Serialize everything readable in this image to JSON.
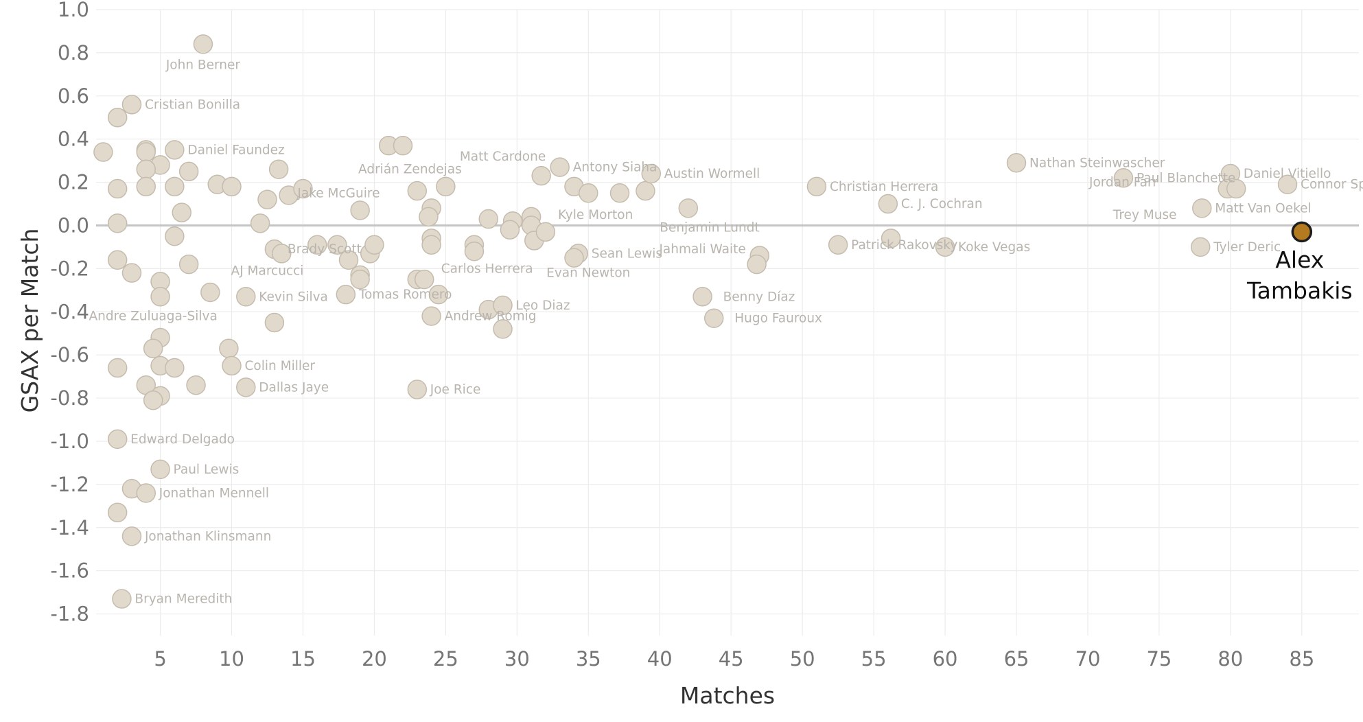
{
  "chart_data": {
    "type": "scatter",
    "xlabel": "Matches",
    "ylabel": "GSAX per Match",
    "xlim": [
      0.5,
      89
    ],
    "ylim": [
      -1.9,
      1.0
    ],
    "x_ticks": [
      5,
      10,
      15,
      20,
      25,
      30,
      35,
      40,
      45,
      50,
      55,
      60,
      65,
      70,
      75,
      80,
      85
    ],
    "y_ticks": [
      1.0,
      0.8,
      0.6,
      0.4,
      0.2,
      0.0,
      -0.2,
      -0.4,
      -0.6,
      -0.8,
      -1.0,
      -1.2,
      -1.4,
      -1.6,
      -1.8
    ],
    "y_tick_labels": [
      "1.0",
      "0.8",
      "0.6",
      "0.4",
      "0.2",
      "0.0",
      "-0.2",
      "-0.4",
      "-0.6",
      "-0.8",
      "-1.0",
      "-1.2",
      "-1.4",
      "-1.6",
      "-1.8"
    ],
    "grid": true,
    "colors": {
      "point": "#e1d9cc",
      "highlight": "#b47a1f",
      "label": "#b9b5ae"
    },
    "highlight": {
      "name": "Alex Tambakis",
      "label_lines": [
        "Alex",
        "Tambakis"
      ],
      "x": 85,
      "y": -0.03
    },
    "points": [
      {
        "x": 8,
        "y": 0.84,
        "label": "John Berner"
      },
      {
        "x": 3,
        "y": 0.56,
        "label": "Cristian Bonilla"
      },
      {
        "x": 2,
        "y": 0.5
      },
      {
        "x": 1,
        "y": 0.34
      },
      {
        "x": 4,
        "y": 0.35
      },
      {
        "x": 6,
        "y": 0.35,
        "label": "Daniel Faundez"
      },
      {
        "x": 4,
        "y": 0.34
      },
      {
        "x": 5,
        "y": 0.28
      },
      {
        "x": 4,
        "y": 0.26
      },
      {
        "x": 7,
        "y": 0.25
      },
      {
        "x": 9,
        "y": 0.19
      },
      {
        "x": 10,
        "y": 0.18
      },
      {
        "x": 2,
        "y": 0.17
      },
      {
        "x": 4,
        "y": 0.18
      },
      {
        "x": 6,
        "y": 0.18
      },
      {
        "x": 6.5,
        "y": 0.06
      },
      {
        "x": 2,
        "y": 0.01
      },
      {
        "x": 6,
        "y": -0.05
      },
      {
        "x": 2,
        "y": -0.16
      },
      {
        "x": 7,
        "y": -0.18
      },
      {
        "x": 3,
        "y": -0.22
      },
      {
        "x": 5,
        "y": -0.26
      },
      {
        "x": 5,
        "y": -0.33
      },
      {
        "x": 8.5,
        "y": -0.31
      },
      {
        "x": 5,
        "y": -0.52
      },
      {
        "x": 4.5,
        "y": -0.57
      },
      {
        "x": 9.8,
        "y": -0.57
      },
      {
        "x": 10,
        "y": -0.65,
        "label": "Colin Miller"
      },
      {
        "x": 5,
        "y": -0.65
      },
      {
        "x": 6,
        "y": -0.66
      },
      {
        "x": 2,
        "y": -0.66
      },
      {
        "x": 4,
        "y": -0.74
      },
      {
        "x": 7.5,
        "y": -0.74
      },
      {
        "x": 11,
        "y": -0.75,
        "label": "Dallas Jaye"
      },
      {
        "x": 5,
        "y": -0.79
      },
      {
        "x": 4.5,
        "y": -0.81
      },
      {
        "x": 2,
        "y": -0.99,
        "label": "Edward Delgado"
      },
      {
        "x": 5,
        "y": -1.13,
        "label": "Paul Lewis"
      },
      {
        "x": 3,
        "y": -1.22
      },
      {
        "x": 4,
        "y": -1.24,
        "label": "Jonathan Mennell"
      },
      {
        "x": 2,
        "y": -1.33
      },
      {
        "x": 3,
        "y": -1.44,
        "label": "Jonathan Klinsmann"
      },
      {
        "x": 2.3,
        "y": -1.73,
        "label": "Bryan Meredith"
      },
      {
        "x": 12,
        "y": 0.01
      },
      {
        "x": 12.5,
        "y": 0.12
      },
      {
        "x": 13.3,
        "y": 0.26
      },
      {
        "x": 14,
        "y": 0.14
      },
      {
        "x": 15,
        "y": 0.17
      },
      {
        "x": 13,
        "y": -0.11,
        "label": "Brady Scott"
      },
      {
        "x": 13.5,
        "y": -0.13
      },
      {
        "x": 11,
        "y": -0.33,
        "label": "Kevin Silva"
      },
      {
        "x": 13,
        "y": -0.45
      },
      {
        "x": 16,
        "y": -0.09
      },
      {
        "x": 17.4,
        "y": -0.09
      },
      {
        "x": 18.2,
        "y": -0.16
      },
      {
        "x": 19,
        "y": -0.23
      },
      {
        "x": 19,
        "y": -0.25
      },
      {
        "x": 18,
        "y": -0.32,
        "label": "Tomas Romero"
      },
      {
        "x": 19,
        "y": 0.07
      },
      {
        "x": 19.7,
        "y": -0.13
      },
      {
        "x": 20,
        "y": -0.09
      },
      {
        "x": 21,
        "y": 0.37
      },
      {
        "x": 22,
        "y": 0.37
      },
      {
        "x": 23,
        "y": 0.16
      },
      {
        "x": 25,
        "y": 0.18
      },
      {
        "x": 24,
        "y": 0.08
      },
      {
        "x": 23.8,
        "y": 0.04
      },
      {
        "x": 24,
        "y": -0.06
      },
      {
        "x": 24,
        "y": -0.09
      },
      {
        "x": 23,
        "y": -0.25
      },
      {
        "x": 23.5,
        "y": -0.25
      },
      {
        "x": 24.5,
        "y": -0.32
      },
      {
        "x": 24,
        "y": -0.42,
        "label": "Andrew Romig"
      },
      {
        "x": 23,
        "y": -0.76,
        "label": "Joe Rice"
      },
      {
        "x": 27,
        "y": -0.09
      },
      {
        "x": 27,
        "y": -0.12
      },
      {
        "x": 28,
        "y": 0.03
      },
      {
        "x": 29.7,
        "y": 0.02
      },
      {
        "x": 29.5,
        "y": -0.02
      },
      {
        "x": 28,
        "y": -0.39
      },
      {
        "x": 29,
        "y": -0.37,
        "label": "Leo Diaz"
      },
      {
        "x": 29,
        "y": -0.48
      },
      {
        "x": 31,
        "y": 0.04
      },
      {
        "x": 31,
        "y": 0.0
      },
      {
        "x": 31.2,
        "y": -0.07
      },
      {
        "x": 32,
        "y": -0.03
      },
      {
        "x": 31.7,
        "y": 0.23
      },
      {
        "x": 33,
        "y": 0.27,
        "label": "Antony Siaha"
      },
      {
        "x": 34,
        "y": 0.18
      },
      {
        "x": 35,
        "y": 0.15
      },
      {
        "x": 34.3,
        "y": -0.13,
        "label": "Sean Lewis"
      },
      {
        "x": 34,
        "y": -0.15
      },
      {
        "x": 37.2,
        "y": 0.15
      },
      {
        "x": 39,
        "y": 0.16
      },
      {
        "x": 39.4,
        "y": 0.24,
        "label": "Austin Wormell"
      },
      {
        "x": 42,
        "y": 0.08
      },
      {
        "x": 43,
        "y": -0.33,
        "label": "Benny Díaz"
      },
      {
        "x": 43.8,
        "y": -0.43,
        "label": "Hugo Fauroux"
      },
      {
        "x": 47,
        "y": -0.14
      },
      {
        "x": 46.8,
        "y": -0.18
      },
      {
        "x": 51,
        "y": 0.18,
        "label": "Christian Herrera"
      },
      {
        "x": 52.5,
        "y": -0.09,
        "label": "Patrick Rakovsky"
      },
      {
        "x": 56,
        "y": 0.1,
        "label": "C. J. Cochran"
      },
      {
        "x": 56.2,
        "y": -0.06
      },
      {
        "x": 60,
        "y": -0.1,
        "label": "Koke Vegas"
      },
      {
        "x": 65,
        "y": 0.29,
        "label": "Nathan Steinwascher"
      },
      {
        "x": 72.5,
        "y": 0.22,
        "label": "Paul Blanchette"
      },
      {
        "x": 78,
        "y": 0.08,
        "label": "Matt Van Oekel"
      },
      {
        "x": 77.9,
        "y": -0.1,
        "label": "Tyler Deric"
      },
      {
        "x": 80,
        "y": 0.24,
        "label": "Daniel Vitiello"
      },
      {
        "x": 79.8,
        "y": 0.17
      },
      {
        "x": 80.4,
        "y": 0.17
      },
      {
        "x": 84,
        "y": 0.19,
        "label": "Connor Sparrow"
      }
    ],
    "floating_labels": [
      {
        "x": 22.5,
        "y": 0.26,
        "label": "Adrián Zendejas"
      },
      {
        "x": 17.5,
        "y": 0.15,
        "label": "Jake McGuire"
      },
      {
        "x": 29,
        "y": 0.32,
        "label": "Matt Cardone"
      },
      {
        "x": 35.5,
        "y": 0.05,
        "label": "Kyle Morton"
      },
      {
        "x": 43.5,
        "y": -0.01,
        "label": "Benjamin Lundt"
      },
      {
        "x": 43,
        "y": -0.11,
        "label": "Jahmali Waite"
      },
      {
        "x": 35,
        "y": -0.22,
        "label": "Evan Newton"
      },
      {
        "x": 27.9,
        "y": -0.2,
        "label": "Carlos Herrera"
      },
      {
        "x": 12.5,
        "y": -0.21,
        "label": "AJ Marcucci"
      },
      {
        "x": 4.5,
        "y": -0.42,
        "label": "Andre Zuluaga-Silva"
      },
      {
        "x": 72.5,
        "y": 0.2,
        "label": "Jordan Farr"
      },
      {
        "x": 74,
        "y": 0.05,
        "label": "Trey Muse"
      }
    ]
  }
}
